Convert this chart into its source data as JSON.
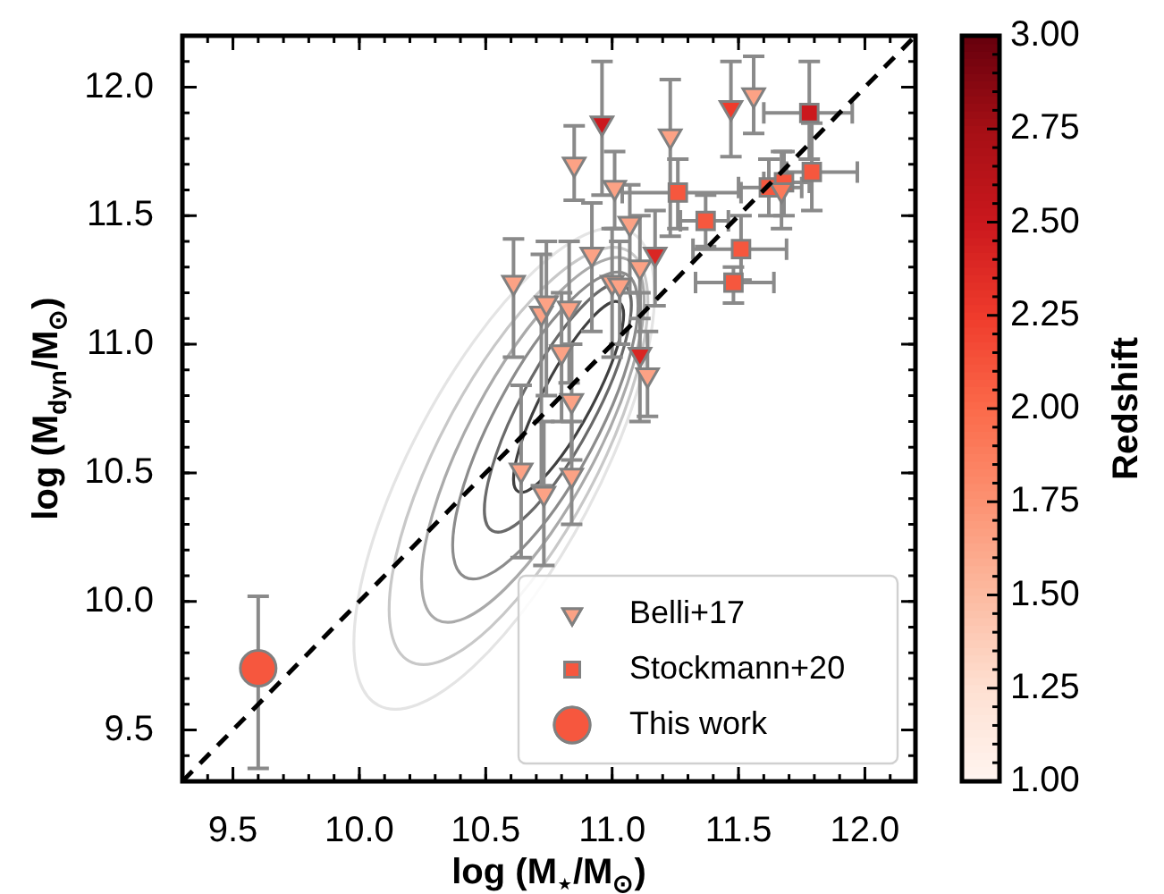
{
  "chart_data": {
    "type": "scatter",
    "xlabel": "log (M$_{⋆}$/M$_{⊙}$)",
    "ylabel": "log (M$_{dyn}$/M$_{⊙}$)",
    "clabel": "Redshift",
    "xlim": [
      9.3,
      12.2
    ],
    "ylim": [
      9.3,
      12.2
    ],
    "xticks": [
      {
        "value": 9.5,
        "label": "9.5"
      },
      {
        "value": 10,
        "label": "10.0"
      },
      {
        "value": 10.5,
        "label": "10.5"
      },
      {
        "value": 11,
        "label": "11.0"
      },
      {
        "value": 11.5,
        "label": "11.5"
      },
      {
        "value": 12,
        "label": "12.0"
      }
    ],
    "yticks": [
      {
        "value": 9.5,
        "label": "9.5"
      },
      {
        "value": 10,
        "label": "10.0"
      },
      {
        "value": 10.5,
        "label": "10.5"
      },
      {
        "value": 11,
        "label": "11.0"
      },
      {
        "value": 11.5,
        "label": "11.5"
      },
      {
        "value": 12,
        "label": "12.0"
      }
    ],
    "clim": [
      1,
      3
    ],
    "cticks": [
      {
        "value": 1,
        "label": "1.00"
      },
      {
        "value": 1.25,
        "label": "1.25"
      },
      {
        "value": 1.5,
        "label": "1.50"
      },
      {
        "value": 1.75,
        "label": "1.75"
      },
      {
        "value": 2,
        "label": "2.00"
      },
      {
        "value": 2.25,
        "label": "2.25"
      },
      {
        "value": 2.5,
        "label": "2.50"
      },
      {
        "value": 2.75,
        "label": "2.75"
      },
      {
        "value": 3,
        "label": "3.00"
      }
    ],
    "legend": "bottom right",
    "series": [
      {
        "name": "Belli+17",
        "type": "scatter",
        "marker": "triangle",
        "colors": [
          "#cb181d",
          "#fca285",
          "#fca285",
          "#fca285",
          "#ef3b2c",
          "#fca285",
          "#fb7a5a",
          "#fca285",
          "#fca285",
          "#fca285",
          "#d92623",
          "#fca285",
          "#fca285",
          "#fca285",
          "#fca285",
          "#fca285",
          "#fca285",
          "#fca285",
          "#d92623",
          "#fca285",
          "#fca285",
          "#fca285",
          "#fca285",
          "#fca285"
        ],
        "x": [
          10.96,
          10.85,
          11.01,
          11.23,
          11.47,
          11.56,
          11.67,
          10.61,
          10.92,
          11.07,
          11.17,
          11.0,
          11.11,
          10.72,
          10.74,
          10.83,
          10.8,
          11.03,
          11.11,
          11.14,
          10.84,
          10.64,
          10.73,
          10.84
        ],
        "values": [
          11.86,
          11.7,
          11.61,
          11.81,
          11.92,
          11.97,
          11.6,
          11.24,
          11.35,
          11.47,
          11.35,
          11.24,
          11.3,
          11.12,
          11.16,
          11.14,
          10.97,
          11.23,
          10.96,
          10.88,
          10.78,
          10.51,
          10.42,
          10.49
        ],
        "errors": [
          [
            11.58,
            12.1
          ],
          [
            11.56,
            11.85
          ],
          [
            11.45,
            11.75
          ],
          [
            11.42,
            12.03
          ],
          [
            11.73,
            12.1
          ],
          [
            11.82,
            12.12
          ],
          [
            11.45,
            11.75
          ],
          [
            10.95,
            11.41
          ],
          [
            11.05,
            11.55
          ],
          [
            11.2,
            11.62
          ],
          [
            11.15,
            11.52
          ],
          [
            10.95,
            11.45
          ],
          [
            11.1,
            11.5
          ],
          [
            10.45,
            11.35
          ],
          [
            10.8,
            11.4
          ],
          [
            10.85,
            11.4
          ],
          [
            10.7,
            11.2
          ],
          [
            11.0,
            11.4
          ],
          [
            10.7,
            11.2
          ],
          [
            10.72,
            11.05
          ],
          [
            10.55,
            11.0
          ],
          [
            10.17,
            10.84
          ],
          [
            10.14,
            10.7
          ],
          [
            10.3,
            10.7
          ]
        ]
      },
      {
        "name": "Stockmann+20",
        "type": "scatter",
        "marker": "square",
        "colors": [
          "#cb181d",
          "#f6573e",
          "#f6573e",
          "#f6573e",
          "#f6573e",
          "#f6573e",
          "#f6573e",
          "#f6573e"
        ],
        "x": [
          11.78,
          11.79,
          11.26,
          11.62,
          11.68,
          11.37,
          11.51,
          11.48
        ],
        "values": [
          11.9,
          11.67,
          11.59,
          11.61,
          11.63,
          11.48,
          11.37,
          11.24
        ],
        "errors": [
          [
            11.72,
            12.1
          ],
          [
            11.52,
            11.86
          ],
          [
            11.45,
            11.72
          ],
          [
            11.5,
            11.72
          ],
          [
            11.5,
            11.75
          ],
          [
            11.38,
            11.58
          ],
          [
            11.25,
            11.5
          ],
          [
            11.16,
            11.3
          ]
        ],
        "xerrors": [
          [
            11.6,
            11.95
          ],
          [
            11.69,
            11.97
          ],
          [
            11.04,
            11.51
          ],
          [
            11.5,
            11.75
          ],
          [
            11.6,
            11.78
          ],
          [
            11.27,
            11.46
          ],
          [
            11.32,
            11.69
          ],
          [
            11.33,
            11.64
          ]
        ]
      },
      {
        "name": "This work",
        "marker": "circle",
        "color": "#f6573e",
        "x": [
          9.6
        ],
        "values": [
          9.74
        ],
        "errors": [
          [
            9.35,
            10.02
          ]
        ]
      },
      {
        "type": "line",
        "marker": "none",
        "line_style": "dashed",
        "color": "#000000",
        "x": [
          9.3,
          12.2
        ],
        "values": [
          9.3,
          12.2
        ]
      }
    ]
  }
}
